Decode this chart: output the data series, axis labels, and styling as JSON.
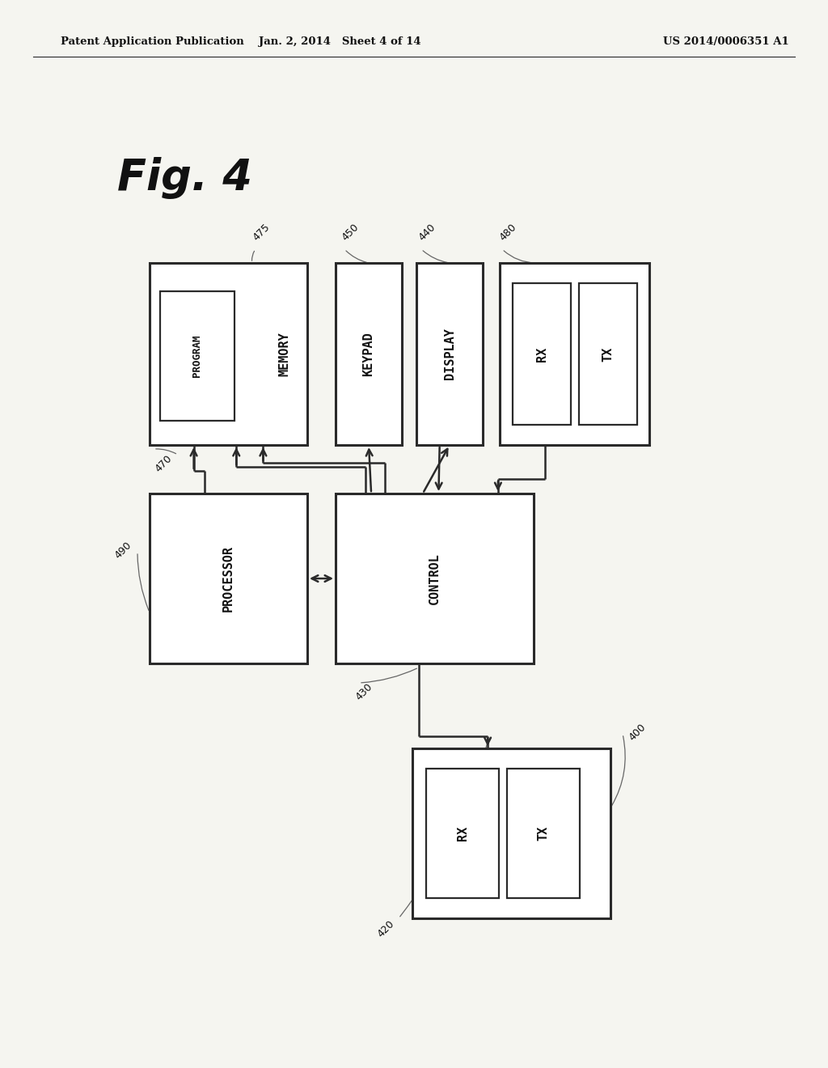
{
  "header_left": "Patent Application Publication",
  "header_mid": "Jan. 2, 2014   Sheet 4 of 14",
  "header_right": "US 2014/0006351 A1",
  "bg_color": "#f5f5f0",
  "line_color": "#2a2a2a",
  "fig_label": "Fig. 4",
  "ref_nums": [
    "475",
    "470",
    "450",
    "440",
    "480",
    "490",
    "430",
    "400",
    "420"
  ]
}
